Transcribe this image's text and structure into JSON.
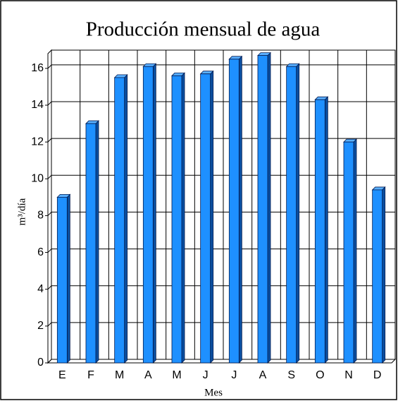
{
  "chart_data": {
    "type": "bar",
    "title": "Producción mensual de agua",
    "x_label": "Mes",
    "y_label": "m³/día",
    "categories": [
      "E",
      "F",
      "M",
      "A",
      "M",
      "J",
      "J",
      "A",
      "S",
      "O",
      "N",
      "D"
    ],
    "values": [
      9.0,
      13.0,
      15.5,
      16.1,
      15.6,
      15.7,
      16.5,
      16.7,
      16.1,
      14.3,
      12.0,
      9.4
    ],
    "color": "#1e90ff",
    "ylim": [
      0,
      16.8
    ],
    "yticks": [
      0,
      2,
      4,
      6,
      8,
      10,
      12,
      14,
      16
    ],
    "grid": true
  }
}
